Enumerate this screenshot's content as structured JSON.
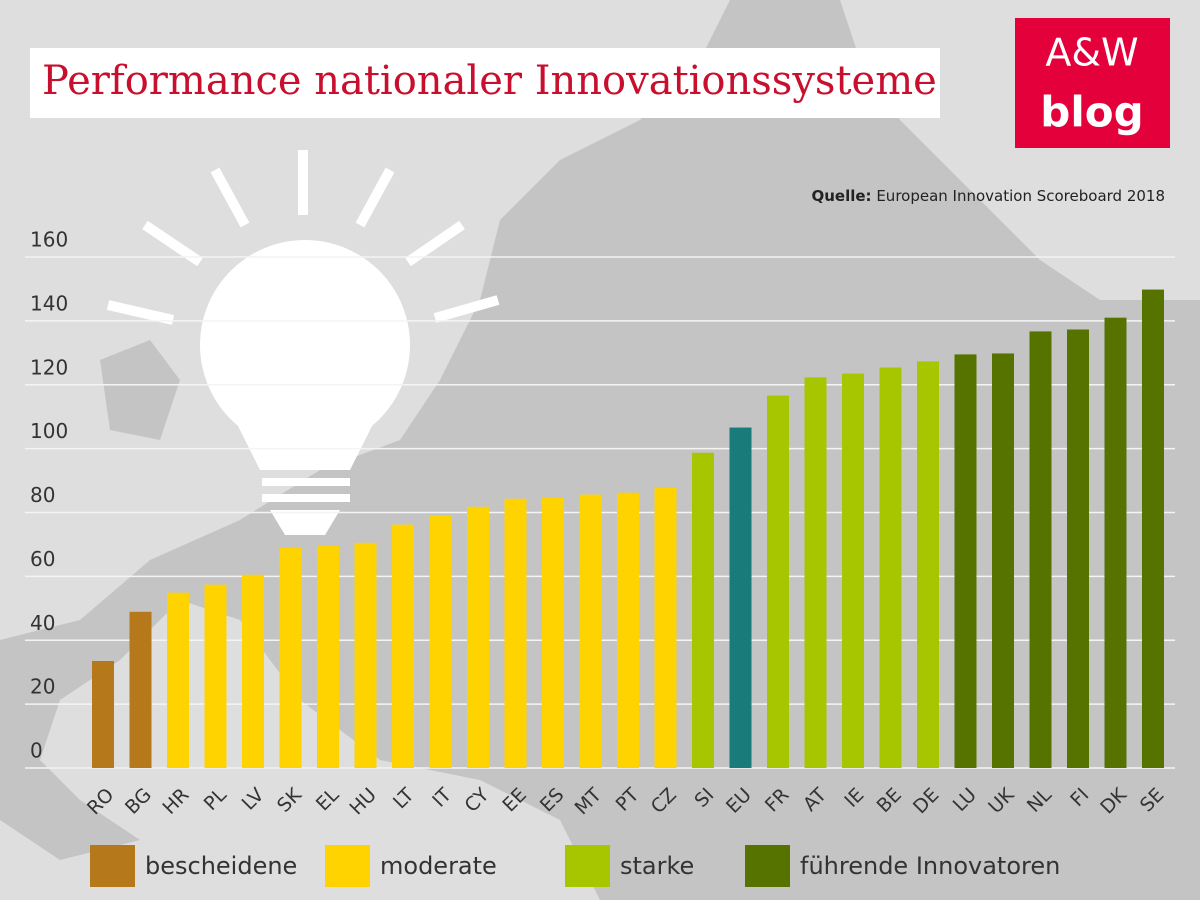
{
  "chart_data": {
    "type": "bar",
    "title": "Performance nationaler Innovationssysteme",
    "logo": [
      "A&W",
      "blog"
    ],
    "source_label": "Quelle:",
    "source": "European Innovation Scoreboard 2018",
    "categories": [
      "RO",
      "BG",
      "HR",
      "PL",
      "LV",
      "SK",
      "EL",
      "HU",
      "LT",
      "IT",
      "CY",
      "EE",
      "ES",
      "MT",
      "PT",
      "CZ",
      "SI",
      "EU",
      "FR",
      "AT",
      "IE",
      "BE",
      "DE",
      "LU",
      "UK",
      "NL",
      "FI",
      "DK",
      "SE"
    ],
    "values": [
      33.5,
      48.9,
      54.9,
      57.4,
      60.5,
      69,
      69.6,
      70.5,
      76.2,
      79,
      81.8,
      84.3,
      84.6,
      85.6,
      86.2,
      87.8,
      98.7,
      106.6,
      116.6,
      122.3,
      123.5,
      125.4,
      127.3,
      129.5,
      129.8,
      136.7,
      137.3,
      141,
      149.8
    ],
    "colors": [
      "#b5781b",
      "#b5781b",
      "#ffd300",
      "#ffd300",
      "#ffd300",
      "#ffd300",
      "#ffd300",
      "#ffd300",
      "#ffd300",
      "#ffd300",
      "#ffd300",
      "#ffd300",
      "#ffd300",
      "#ffd300",
      "#ffd300",
      "#ffd300",
      "#a8c600",
      "#1a7b7b",
      "#a8c600",
      "#a8c600",
      "#a8c600",
      "#a8c600",
      "#a8c600",
      "#567300",
      "#567300",
      "#567300",
      "#567300",
      "#567300",
      "#567300"
    ],
    "legend": [
      {
        "name": "bescheidene",
        "color": "#b5781b"
      },
      {
        "name": "moderate",
        "color": "#ffd300"
      },
      {
        "name": "starke",
        "color": "#a8c600"
      },
      {
        "name": "führende Innovatoren",
        "color": "#567300"
      }
    ],
    "ylim": [
      0,
      160
    ],
    "yticks": [
      0,
      20,
      40,
      60,
      80,
      100,
      120,
      140,
      160
    ],
    "grid": true
  }
}
